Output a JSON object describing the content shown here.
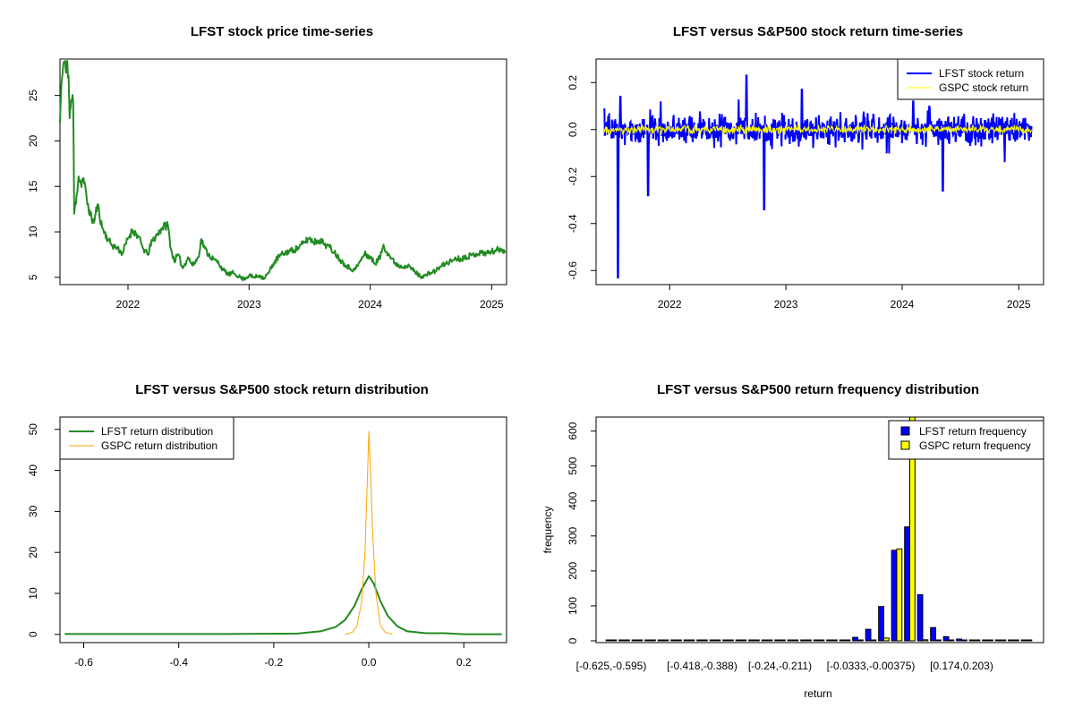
{
  "chart_data": [
    {
      "type": "line",
      "title": "LFST stock price time-series",
      "xlabel": "",
      "ylabel": "",
      "x_ticks": [
        "2022",
        "2023",
        "2024",
        "2025"
      ],
      "y_ticks": [
        5,
        10,
        15,
        20,
        25
      ],
      "xlim": [
        "2021-06-10",
        "2025-02-15"
      ],
      "ylim": [
        4.2,
        29
      ],
      "color": "#228B22",
      "series": [
        {
          "points": [
            [
              "2021-06-10",
              22
            ],
            [
              "2021-06-14",
              26
            ],
            [
              "2021-06-18",
              27.5
            ],
            [
              "2021-06-22",
              28.7
            ],
            [
              "2021-06-28",
              27.5
            ],
            [
              "2021-07-02",
              28.8
            ],
            [
              "2021-07-06",
              27.2
            ],
            [
              "2021-07-09",
              22.5
            ],
            [
              "2021-07-14",
              24.5
            ],
            [
              "2021-07-20",
              24.2
            ],
            [
              "2021-07-23",
              12
            ],
            [
              "2021-07-30",
              14
            ],
            [
              "2021-08-05",
              16.1
            ],
            [
              "2021-08-12",
              15.3
            ],
            [
              "2021-08-20",
              15.9
            ],
            [
              "2021-08-30",
              13.5
            ],
            [
              "2021-09-10",
              11.8
            ],
            [
              "2021-09-20",
              11
            ],
            [
              "2021-10-01",
              13
            ],
            [
              "2021-10-15",
              10.5
            ],
            [
              "2021-11-01",
              9.2
            ],
            [
              "2021-11-15",
              8.5
            ],
            [
              "2021-12-01",
              8.2
            ],
            [
              "2021-12-15",
              7.6
            ],
            [
              "2022-01-01",
              9.3
            ],
            [
              "2022-01-15",
              10.2
            ],
            [
              "2022-02-01",
              9.5
            ],
            [
              "2022-02-15",
              8.2
            ],
            [
              "2022-03-01",
              7.5
            ],
            [
              "2022-03-15",
              9
            ],
            [
              "2022-04-01",
              9.8
            ],
            [
              "2022-04-15",
              10.5
            ],
            [
              "2022-05-01",
              10.8
            ],
            [
              "2022-05-10",
              8.2
            ],
            [
              "2022-05-20",
              6.8
            ],
            [
              "2022-06-01",
              7.5
            ],
            [
              "2022-06-15",
              6
            ],
            [
              "2022-07-01",
              7.2
            ],
            [
              "2022-07-15",
              6.3
            ],
            [
              "2022-08-01",
              7.2
            ],
            [
              "2022-08-10",
              9.2
            ],
            [
              "2022-08-20",
              8.2
            ],
            [
              "2022-09-01",
              7.5
            ],
            [
              "2022-09-15",
              7
            ],
            [
              "2022-10-01",
              6.6
            ],
            [
              "2022-10-15",
              5.8
            ],
            [
              "2022-11-01",
              5.3
            ],
            [
              "2022-11-15",
              5.5
            ],
            [
              "2022-12-01",
              5.1
            ],
            [
              "2022-12-15",
              4.8
            ],
            [
              "2023-01-01",
              5.2
            ],
            [
              "2023-01-15",
              5
            ],
            [
              "2023-02-01",
              5.2
            ],
            [
              "2023-02-15",
              4.9
            ],
            [
              "2023-03-01",
              5.5
            ],
            [
              "2023-03-15",
              6.5
            ],
            [
              "2023-04-01",
              7.3
            ],
            [
              "2023-04-15",
              7.6
            ],
            [
              "2023-05-01",
              7.9
            ],
            [
              "2023-05-15",
              8
            ],
            [
              "2023-06-01",
              8.3
            ],
            [
              "2023-06-15",
              8.8
            ],
            [
              "2023-07-01",
              9.3
            ],
            [
              "2023-07-15",
              8.9
            ],
            [
              "2023-08-01",
              9.1
            ],
            [
              "2023-08-15",
              8.7
            ],
            [
              "2023-09-01",
              8.3
            ],
            [
              "2023-09-15",
              7.8
            ],
            [
              "2023-10-01",
              7
            ],
            [
              "2023-10-15",
              6.5
            ],
            [
              "2023-11-01",
              6
            ],
            [
              "2023-11-15",
              5.8
            ],
            [
              "2023-12-01",
              6.7
            ],
            [
              "2023-12-15",
              7.6
            ],
            [
              "2024-01-01",
              7.2
            ],
            [
              "2024-01-15",
              6.5
            ],
            [
              "2024-02-01",
              7.3
            ],
            [
              "2024-02-10",
              8.6
            ],
            [
              "2024-02-20",
              7.8
            ],
            [
              "2024-03-01",
              7.3
            ],
            [
              "2024-03-15",
              6.6
            ],
            [
              "2024-04-01",
              6.2
            ],
            [
              "2024-04-15",
              6.3
            ],
            [
              "2024-05-01",
              6.1
            ],
            [
              "2024-05-15",
              5.6
            ],
            [
              "2024-06-01",
              5.1
            ],
            [
              "2024-06-15",
              5.2
            ],
            [
              "2024-07-01",
              5.5
            ],
            [
              "2024-07-15",
              5.7
            ],
            [
              "2024-08-01",
              6.2
            ],
            [
              "2024-08-15",
              6.5
            ],
            [
              "2024-09-01",
              6.8
            ],
            [
              "2024-09-15",
              7.1
            ],
            [
              "2024-10-01",
              7
            ],
            [
              "2024-10-15",
              7.3
            ],
            [
              "2024-11-01",
              7.4
            ],
            [
              "2024-11-15",
              7.6
            ],
            [
              "2024-12-01",
              7.7
            ],
            [
              "2024-12-15",
              7.7
            ],
            [
              "2025-01-01",
              7.8
            ],
            [
              "2025-01-15",
              8
            ],
            [
              "2025-02-01",
              8.1
            ],
            [
              "2025-02-11",
              7.9
            ]
          ]
        }
      ]
    },
    {
      "type": "line",
      "title": "LFST versus S&P500 stock return time-series",
      "xlabel": "",
      "ylabel": "",
      "x_ticks": [
        "2022",
        "2023",
        "2024",
        "2025"
      ],
      "y_ticks": [
        -0.6,
        -0.4,
        -0.2,
        0.0,
        0.2
      ],
      "y_tick_labels": [
        "-0.6",
        "-0.4",
        "-0.2",
        "0.0",
        "0.2"
      ],
      "xlim": [
        "2021-05-15",
        "2025-03-20"
      ],
      "ylim": [
        -0.66,
        0.3
      ],
      "legend_position": "top-right",
      "series": [
        {
          "name": "LFST stock return",
          "color": "#0000FF",
          "spikes": [
            [
              "2021-06-10",
              0.09
            ],
            [
              "2021-07-23",
              -0.63
            ],
            [
              "2021-07-30",
              0.14
            ],
            [
              "2021-10-25",
              -0.28
            ],
            [
              "2022-08-30",
              0.23
            ],
            [
              "2022-10-25",
              -0.34
            ],
            [
              "2023-02-20",
              0.17
            ],
            [
              "2024-02-05",
              0.12
            ],
            [
              "2024-05-08",
              -0.26
            ]
          ]
        },
        {
          "name": "GSPC stock return",
          "color": "#FFFF00"
        }
      ]
    },
    {
      "type": "line",
      "title": "LFST versus S&P500 stock return distribution",
      "xlabel": "",
      "ylabel": "",
      "x_ticks": [
        -0.6,
        -0.4,
        -0.2,
        0.0,
        0.2
      ],
      "x_tick_labels": [
        "-0.6",
        "-0.4",
        "-0.2",
        "0.0",
        "0.2"
      ],
      "y_ticks": [
        0,
        10,
        20,
        30,
        40,
        50
      ],
      "xlim": [
        -0.65,
        0.29
      ],
      "ylim": [
        -2,
        53
      ],
      "legend_position": "top-left",
      "series": [
        {
          "name": "LFST return distribution",
          "color": "#228B22",
          "points": [
            [
              -0.64,
              0.1
            ],
            [
              -0.3,
              0.1
            ],
            [
              -0.15,
              0.2
            ],
            [
              -0.1,
              0.8
            ],
            [
              -0.07,
              1.8
            ],
            [
              -0.05,
              3.5
            ],
            [
              -0.03,
              7
            ],
            [
              -0.015,
              11
            ],
            [
              0.0,
              14.2
            ],
            [
              0.01,
              12.5
            ],
            [
              0.025,
              8
            ],
            [
              0.04,
              4.5
            ],
            [
              0.06,
              2
            ],
            [
              0.08,
              0.8
            ],
            [
              0.12,
              0.3
            ],
            [
              0.16,
              0.3
            ],
            [
              0.2,
              0.05
            ],
            [
              0.28,
              0.05
            ]
          ]
        },
        {
          "name": "GSPC return distribution",
          "color": "#FFA500",
          "points": [
            [
              -0.05,
              0
            ],
            [
              -0.035,
              0.5
            ],
            [
              -0.025,
              2
            ],
            [
              -0.015,
              8
            ],
            [
              -0.008,
              20
            ],
            [
              -0.003,
              38
            ],
            [
              0.0,
              49.5
            ],
            [
              0.003,
              42
            ],
            [
              0.008,
              25
            ],
            [
              0.015,
              10
            ],
            [
              0.025,
              2
            ],
            [
              0.035,
              0.5
            ],
            [
              0.05,
              0
            ]
          ]
        }
      ]
    },
    {
      "type": "bar",
      "title": "LFST versus S&P500 return frequency distribution",
      "xlabel": "return",
      "ylabel": "frequency",
      "y_ticks": [
        0,
        100,
        200,
        300,
        400,
        500,
        600
      ],
      "ylim": [
        0,
        640
      ],
      "legend_position": "top-right",
      "x_tick_labels": [
        {
          "bin": 0,
          "label": "[-0.625,-0.595)"
        },
        {
          "bin": 7,
          "label": "[-0.418,-0.388)"
        },
        {
          "bin": 13,
          "label": "[-0.24,-0.211)"
        },
        {
          "bin": 20,
          "label": "[-0.0333,-0.00375)"
        },
        {
          "bin": 27,
          "label": "[0.174,0.203)"
        }
      ],
      "bin_count": 33,
      "series": [
        {
          "name": "LFST return frequency",
          "color": "#0000FF",
          "values": [
            1,
            0,
            0,
            0,
            0,
            0,
            0,
            0,
            0,
            1,
            0,
            0,
            0,
            1,
            0,
            0,
            0,
            0,
            2,
            10,
            33,
            98,
            259,
            326,
            132,
            38,
            12,
            5,
            2,
            1,
            1,
            0,
            0
          ]
        },
        {
          "name": "GSPC return frequency",
          "color": "#FFFF00",
          "values": [
            0,
            0,
            0,
            0,
            0,
            0,
            0,
            0,
            0,
            0,
            0,
            0,
            0,
            0,
            0,
            0,
            0,
            0,
            0,
            0,
            0,
            8,
            263,
            640,
            3,
            0,
            0,
            0,
            0,
            0,
            0,
            0,
            0
          ]
        }
      ]
    }
  ]
}
